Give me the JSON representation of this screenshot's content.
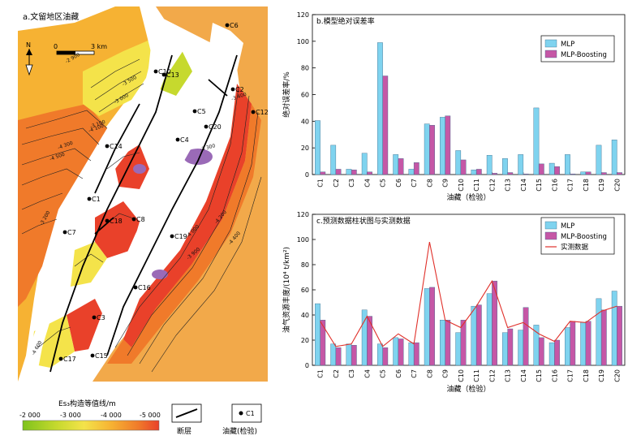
{
  "map": {
    "title": "a.文留地区油藏",
    "north_label": "N",
    "scale_zero": "0",
    "scale_label": "3 km",
    "well_labels": [
      "C1",
      "C2",
      "C3",
      "C4",
      "C5",
      "C6",
      "C7",
      "C8",
      "C10",
      "C12",
      "C13",
      "C14",
      "C15",
      "C16",
      "C17",
      "C18",
      "C19",
      "C20"
    ],
    "contour_labels": [
      "-2 900",
      "-3 000",
      "-3 100",
      "-3 200",
      "-3 300",
      "-3 400",
      "-3 500",
      "-3 900",
      "-4 000",
      "-4 100",
      "-4 200",
      "-4 300",
      "-4 400",
      "-4 500",
      "-4 600"
    ]
  },
  "legend": {
    "colorbar_title": "Es₃构造等值线/m",
    "colorbar_ticks": [
      "-2 000",
      "-3 000",
      "-4 000",
      "-5 000"
    ],
    "fault_label": "断层",
    "well_symbol_label": "C1",
    "well_label": "油藏(检验)",
    "colors": [
      "#7fc31c",
      "#c6d92e",
      "#f4e34a",
      "#f6b233",
      "#f07a2a",
      "#e9412a"
    ]
  },
  "chart_data": [
    {
      "type": "bar",
      "title": "b.模型绝对误差率",
      "xlabel": "油藏（检验）",
      "ylabel": "绝对误差率/%",
      "ylim": [
        0,
        120
      ],
      "yticks": [
        0,
        20,
        40,
        60,
        80,
        100,
        120
      ],
      "categories": [
        "C1",
        "C2",
        "C3",
        "C4",
        "C5",
        "C6",
        "C7",
        "C8",
        "C9",
        "C10",
        "C11",
        "C12",
        "C13",
        "C14",
        "C15",
        "C16",
        "C17",
        "C18",
        "C19",
        "C20"
      ],
      "series": [
        {
          "name": "MLP",
          "color": "#7fd3ef",
          "values": [
            40.5,
            22,
            4,
            16,
            99,
            15,
            4,
            38,
            43,
            18,
            3.5,
            14.5,
            12,
            15,
            50,
            8.5,
            15,
            2,
            22,
            26
          ]
        },
        {
          "name": "MLP-Boosting",
          "color": "#c557a6",
          "values": [
            2,
            4,
            3.5,
            2,
            74,
            12,
            9,
            37,
            44,
            11,
            4,
            1,
            1.5,
            0.5,
            8,
            6,
            0.5,
            2,
            1.5,
            1.5
          ]
        }
      ],
      "legend_position": "top-right"
    },
    {
      "type": "bar",
      "title": "c.预测数据柱状图与实测数据",
      "xlabel": "油藏（检验）",
      "ylabel": "油气资源丰度/(10⁴ t/km²)",
      "ylim": [
        0,
        120
      ],
      "yticks": [
        0,
        20,
        40,
        60,
        80,
        100,
        120
      ],
      "categories": [
        "C1",
        "C2",
        "C3",
        "C4",
        "C5",
        "C6",
        "C7",
        "C8",
        "C9",
        "C10",
        "C11",
        "C12",
        "C13",
        "C14",
        "C15",
        "C16",
        "C17",
        "C18",
        "C19",
        "C20"
      ],
      "series": [
        {
          "name": "MLP",
          "color": "#7fd3ef",
          "values": [
            49,
            17,
            17,
            44,
            17,
            22,
            18,
            61,
            36,
            26,
            47,
            57,
            26,
            28,
            32,
            18,
            30,
            34,
            53,
            59
          ]
        },
        {
          "name": "MLP-Boosting",
          "color": "#c557a6",
          "values": [
            36,
            14,
            16,
            39,
            14,
            21,
            18,
            62,
            36,
            36,
            48,
            67,
            29,
            46,
            22,
            20,
            35,
            35,
            44,
            47
          ]
        },
        {
          "name": "实测数据",
          "color": "#e0302a",
          "type": "line",
          "values": [
            35,
            15,
            17,
            39,
            15,
            25,
            17,
            98,
            36,
            30,
            47,
            67,
            30,
            34,
            25,
            19,
            35,
            34,
            43,
            47
          ]
        }
      ],
      "legend_position": "top-right"
    }
  ]
}
